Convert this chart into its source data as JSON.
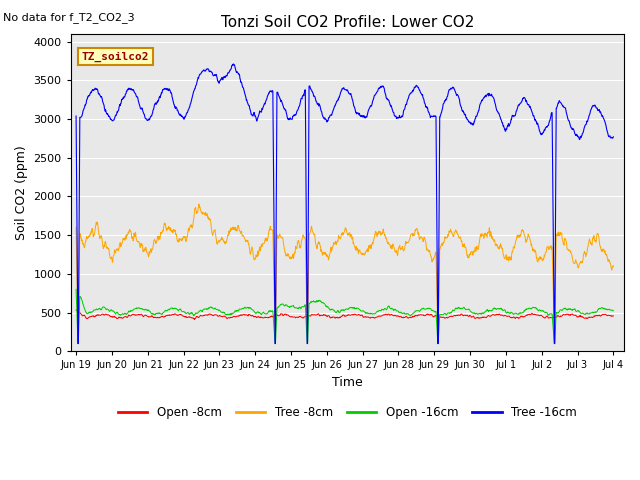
{
  "title": "Tonzi Soil CO2 Profile: Lower CO2",
  "subtitle": "No data for f_T2_CO2_3",
  "xlabel": "Time",
  "ylabel": "Soil CO2 (ppm)",
  "ylim": [
    0,
    4100
  ],
  "yticks": [
    0,
    500,
    1000,
    1500,
    2000,
    2500,
    3000,
    3500,
    4000
  ],
  "background_color": "#e8e8e8",
  "figure_bg": "#ffffff",
  "legend_label": "TZ_soilco2",
  "legend_entries": [
    "Open -8cm",
    "Tree -8cm",
    "Open -16cm",
    "Tree -16cm"
  ],
  "legend_colors": [
    "#ff0000",
    "#ffa500",
    "#00cc00",
    "#0000ff"
  ],
  "line_colors": {
    "open8": "#ff0000",
    "tree8": "#ffa500",
    "open16": "#00cc00",
    "tree16": "#0000ff"
  },
  "spike_positions_days": [
    0.05,
    5.55,
    6.45,
    10.1,
    13.35
  ],
  "xtick_labels": [
    "Jun 19",
    "Jun 20",
    "Jun 21",
    "Jun 22",
    "Jun 23",
    "Jun 24",
    "Jun 25",
    "Jun 26",
    "Jun 27",
    "Jun 28",
    "Jun 29",
    "Jun 30",
    "Jul 1",
    "Jul 2",
    "Jul 3",
    "Jul 4"
  ],
  "xtick_positions": [
    0,
    1,
    2,
    3,
    4,
    5,
    6,
    7,
    8,
    9,
    10,
    11,
    12,
    13,
    14,
    15
  ],
  "grid_color": "#ffffff",
  "n_days": 15,
  "seed": 42
}
